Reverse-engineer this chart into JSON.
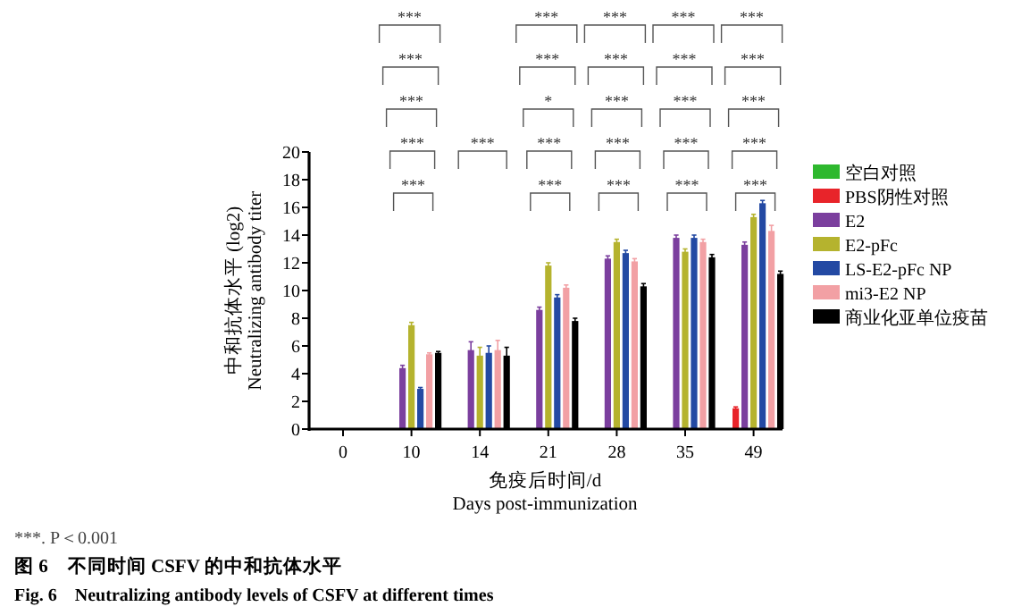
{
  "chart_data": {
    "type": "bar",
    "title": "图 6　不同时间 CSFV 的中和抗体水平",
    "subtitle": "Fig. 6　Neutralizing antibody levels of CSFV at different times",
    "xlabel": "免疫后时间/d\nDays post-immunization",
    "ylabel": "中和抗体水平 (log2)\nNeutralizing antibody titer",
    "categories": [
      "0",
      "10",
      "14",
      "21",
      "28",
      "35",
      "49"
    ],
    "series": [
      {
        "name": "空白对照",
        "color": "#2eb82e",
        "values": [
          0,
          0,
          0,
          0,
          0,
          0,
          0
        ]
      },
      {
        "name": "PBS阴性对照",
        "color": "#e8242a",
        "values": [
          0,
          0,
          0,
          0,
          0,
          0,
          1.5
        ],
        "errors": [
          null,
          null,
          null,
          null,
          null,
          null,
          0.1
        ]
      },
      {
        "name": "E2",
        "color": "#7b3f9e",
        "values": [
          0,
          4.4,
          5.7,
          8.6,
          12.3,
          13.8,
          13.3
        ],
        "errors": [
          null,
          0.2,
          0.6,
          0.2,
          0.2,
          0.2,
          0.2
        ]
      },
      {
        "name": "E2-pFc",
        "color": "#b5b32e",
        "values": [
          0,
          7.5,
          5.3,
          11.8,
          13.5,
          12.8,
          15.3
        ],
        "errors": [
          null,
          0.2,
          0.6,
          0.2,
          0.2,
          0.2,
          0.2
        ]
      },
      {
        "name": "LS-E2-pFc NP",
        "color": "#2349a3",
        "values": [
          0,
          2.9,
          5.5,
          9.5,
          12.7,
          13.8,
          16.3
        ],
        "errors": [
          null,
          0.1,
          0.5,
          0.2,
          0.2,
          0.2,
          0.2
        ]
      },
      {
        "name": "mi3-E2 NP",
        "color": "#f2a0a4",
        "values": [
          0,
          5.4,
          5.7,
          10.2,
          12.1,
          13.5,
          14.3
        ],
        "errors": [
          null,
          0.1,
          0.7,
          0.2,
          0.2,
          0.2,
          0.4
        ]
      },
      {
        "name": "商业化亚单位疫苗",
        "color": "#000000",
        "values": [
          0,
          5.5,
          5.3,
          7.8,
          10.3,
          12.4,
          11.2
        ],
        "errors": [
          null,
          0.1,
          0.6,
          0.2,
          0.2,
          0.2,
          0.2
        ]
      }
    ],
    "ylim": [
      0,
      20
    ],
    "yticks": [
      0,
      2,
      4,
      6,
      8,
      10,
      12,
      14,
      16,
      18,
      20
    ],
    "legend": "right",
    "grid": false,
    "annotations": [
      "***",
      "***",
      "***",
      "***",
      "***",
      "***",
      "***",
      "***",
      "*",
      "***",
      "***",
      "***",
      "***",
      "***",
      "***",
      "***",
      "***",
      "***",
      "***",
      "***",
      "***",
      "***",
      "***",
      "***",
      "***",
      "***",
      "***. P＜0.001"
    ]
  }
}
